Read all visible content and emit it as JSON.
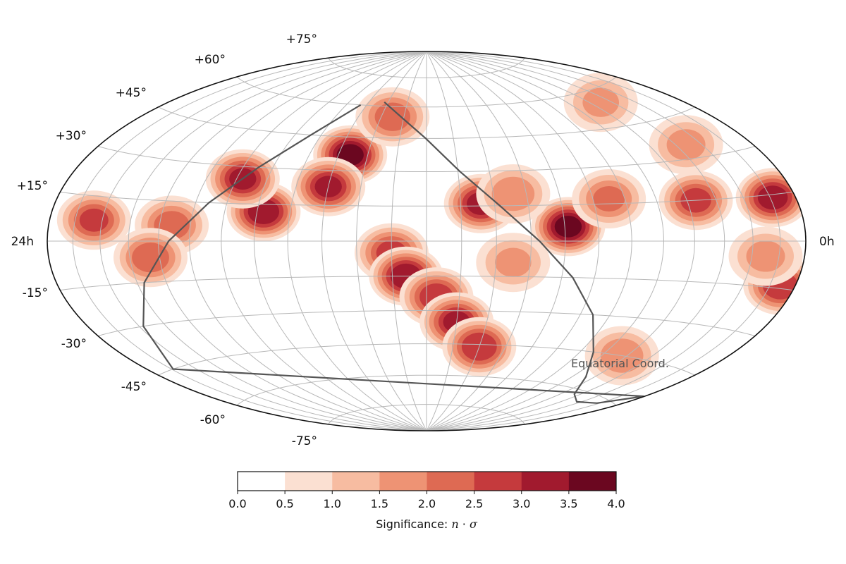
{
  "chart_data": {
    "type": "heatmap",
    "projection": "hammer-aitoff",
    "coordinate_system": "Equatorial Coord.",
    "lon_labels": [
      "24h",
      "0h"
    ],
    "lat_labels": [
      "+75°",
      "+60°",
      "+45°",
      "+30°",
      "+15°",
      "-15°",
      "-30°",
      "-45°",
      "-60°",
      "-75°"
    ],
    "lat_values": [
      75,
      60,
      45,
      30,
      15,
      -15,
      -30,
      -45,
      -60,
      -75
    ],
    "grid": true,
    "colorbar": {
      "label": "Significance: n·σ",
      "label_main": "Significance: ",
      "label_var": "n",
      "label_dot": " · ",
      "label_sigma": "σ",
      "ticks": [
        "0.0",
        "0.5",
        "1.0",
        "1.5",
        "2.0",
        "2.5",
        "3.0",
        "3.5",
        "4.0"
      ],
      "levels": [
        0.0,
        0.5,
        1.0,
        1.5,
        2.0,
        2.5,
        3.0,
        3.5,
        4.0
      ],
      "colors": [
        "#ffffff",
        "#fbe0d2",
        "#f7bca1",
        "#ee9374",
        "#de6a53",
        "#c53a3d",
        "#a11a2e",
        "#6b0720"
      ]
    },
    "hotspots": [
      {
        "ra_h": 14.6,
        "dec": 37,
        "peak": 3.6
      },
      {
        "ra_h": 15.0,
        "dec": 23,
        "peak": 3.0
      },
      {
        "ra_h": 16.8,
        "dec": 12,
        "peak": 3.3
      },
      {
        "ra_h": 17.8,
        "dec": 25,
        "peak": 3.0
      },
      {
        "ra_h": 22.3,
        "dec": 7,
        "peak": 2.5
      },
      {
        "ra_h": 19.6,
        "dec": 6,
        "peak": 2.2
      },
      {
        "ra_h": 20.3,
        "dec": -6,
        "peak": 2.3
      },
      {
        "ra_h": 13.0,
        "dec": -5,
        "peak": 2.6
      },
      {
        "ra_h": 12.6,
        "dec": -15,
        "peak": 3.3
      },
      {
        "ra_h": 11.7,
        "dec": -24,
        "peak": 2.8
      },
      {
        "ra_h": 11.0,
        "dec": -35,
        "peak": 3.0
      },
      {
        "ra_h": 10.0,
        "dec": -46,
        "peak": 2.9
      },
      {
        "ra_h": 13.5,
        "dec": 55,
        "peak": 2.2
      },
      {
        "ra_h": 10.4,
        "dec": 16,
        "peak": 3.1
      },
      {
        "ra_h": 7.9,
        "dec": 6,
        "peak": 3.6
      },
      {
        "ra_h": 6.5,
        "dec": 17,
        "peak": 2.0
      },
      {
        "ra_h": 9.4,
        "dec": 20,
        "peak": 1.8
      },
      {
        "ra_h": 9.5,
        "dec": -9,
        "peak": 1.5
      },
      {
        "ra_h": 3.7,
        "dec": 15,
        "peak": 2.6
      },
      {
        "ra_h": 0.9,
        "dec": 14,
        "peak": 3.2
      },
      {
        "ra_h": 0.6,
        "dec": -14,
        "peak": 2.9
      },
      {
        "ra_h": 1.5,
        "dec": -5,
        "peak": 1.6
      },
      {
        "ra_h": 4.2,
        "dec": -45,
        "peak": 1.8
      },
      {
        "ra_h": 2.6,
        "dec": 35,
        "peak": 1.6
      },
      {
        "ra_h": 3.5,
        "dec": 55,
        "peak": 1.5
      }
    ],
    "galactic_plane_dec": [
      60,
      45,
      30,
      15,
      0,
      -15,
      -30,
      -45,
      -55,
      -62,
      -64,
      -62,
      -55,
      -45,
      -30,
      -15,
      0,
      15,
      30,
      45,
      55,
      62
    ]
  }
}
